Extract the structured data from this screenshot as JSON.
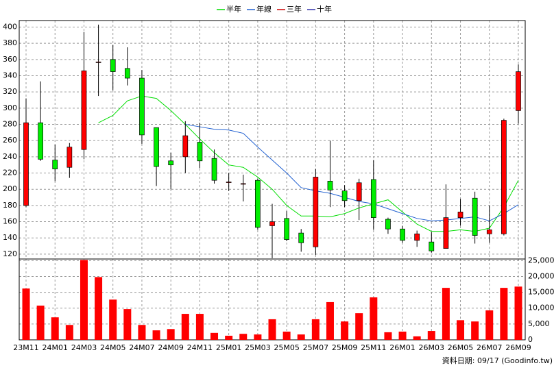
{
  "chart_data": {
    "type": "candlestick",
    "categories": [
      "23M11",
      null,
      "24M01",
      null,
      "24M03",
      null,
      "24M05",
      null,
      "24M07",
      null,
      "24M09",
      null,
      "24M11",
      null,
      "25M01",
      null,
      "25M03",
      null,
      "25M05",
      null,
      "25M07",
      null,
      "25M09",
      null,
      "25M11",
      null,
      "26M01",
      null,
      "26M03",
      null,
      "26M05",
      null,
      "26M07",
      null,
      "26M09"
    ],
    "open": [
      180,
      282,
      236,
      227,
      249,
      357,
      360,
      349,
      337,
      276,
      235,
      240,
      258,
      238,
      209,
      207,
      211,
      155,
      164,
      146,
      129,
      210,
      198,
      186,
      212,
      163,
      151,
      137,
      135,
      127,
      165,
      189,
      145,
      145,
      297
    ],
    "high": [
      312,
      333,
      255,
      257,
      394,
      403,
      378,
      375,
      347,
      276,
      245,
      284,
      282,
      249,
      220,
      218,
      213,
      182,
      173,
      151,
      225,
      260,
      205,
      213,
      236,
      165,
      155,
      149,
      147,
      206,
      188,
      197,
      180,
      287,
      354
    ],
    "low": [
      178,
      235,
      210,
      214,
      237,
      315,
      322,
      328,
      256,
      204,
      200,
      220,
      226,
      207,
      198,
      185,
      150,
      115,
      136,
      123,
      119,
      178,
      178,
      162,
      150,
      145,
      134,
      129,
      122,
      127,
      155,
      133,
      134,
      143,
      281
    ],
    "close": [
      282,
      237,
      225,
      252,
      346,
      357,
      345,
      337,
      267,
      228,
      230,
      266,
      235,
      211,
      209,
      207,
      153,
      160,
      138,
      134,
      215,
      199,
      186,
      208,
      165,
      151,
      137,
      145,
      124,
      165,
      172,
      143,
      150,
      285,
      345
    ],
    "up_color": "#ff0000",
    "down_color": "#00ee00",
    "volume": {
      "color": "#ff0000",
      "axis": "y2",
      "values": [
        16200,
        10800,
        7100,
        4700,
        25200,
        19800,
        12700,
        9700,
        4700,
        3000,
        3400,
        8200,
        8200,
        2200,
        1300,
        1900,
        1700,
        6500,
        2600,
        1700,
        6500,
        11900,
        5800,
        8400,
        13400,
        2400,
        2600,
        1100,
        2800,
        16400,
        6200,
        5800,
        9300,
        16400,
        16800
      ]
    },
    "series": [
      {
        "name": "半年",
        "color": "#00dd00",
        "values": [
          null,
          null,
          null,
          null,
          null,
          282,
          291,
          309,
          315,
          312,
          297,
          280,
          262,
          245,
          230,
          227,
          215,
          200,
          180,
          167,
          167,
          166,
          170,
          177,
          182,
          187,
          172,
          157,
          148,
          148,
          150,
          148,
          152,
          178,
          211
        ]
      },
      {
        "name": "年線",
        "color": "#1f5fd0",
        "values": [
          null,
          null,
          null,
          null,
          null,
          null,
          null,
          null,
          null,
          null,
          null,
          280,
          277,
          274,
          273,
          269,
          252,
          236,
          220,
          202,
          198,
          195,
          190,
          185,
          182,
          176,
          170,
          164,
          161,
          162,
          164,
          166,
          161,
          170,
          181
        ]
      },
      {
        "name": "三年",
        "color": "#cc0000",
        "values": [
          null,
          null,
          null,
          null,
          null,
          null,
          null,
          null,
          null,
          null,
          null,
          null,
          null,
          null,
          null,
          null,
          null,
          null,
          null,
          null,
          null,
          null,
          null,
          null,
          null,
          null,
          null,
          null,
          null,
          null,
          null,
          null,
          null,
          null,
          null
        ]
      },
      {
        "name": "十年",
        "color": "#3333aa",
        "values": [
          null,
          null,
          null,
          null,
          null,
          null,
          null,
          null,
          null,
          null,
          null,
          null,
          null,
          null,
          null,
          null,
          null,
          null,
          null,
          null,
          null,
          null,
          null,
          null,
          null,
          null,
          null,
          null,
          null,
          null,
          null,
          null,
          null,
          null,
          null
        ]
      }
    ],
    "ylim": [
      114,
      408
    ],
    "yticks": [
      120,
      140,
      160,
      180,
      200,
      220,
      240,
      260,
      280,
      300,
      320,
      340,
      360,
      380,
      400
    ],
    "y2lim": [
      0,
      25500
    ],
    "y2ticks": [
      0,
      {
        "value": 5000,
        "label": "5,000"
      },
      {
        "value": 10000,
        "label": "10,000"
      },
      {
        "value": 15000,
        "label": "15,000"
      },
      {
        "value": 20000,
        "label": "20,000"
      },
      {
        "value": 25000,
        "label": "25,000"
      }
    ],
    "grid": true,
    "note": "資料日期: 09/17 (Goodinfo.tw)"
  }
}
